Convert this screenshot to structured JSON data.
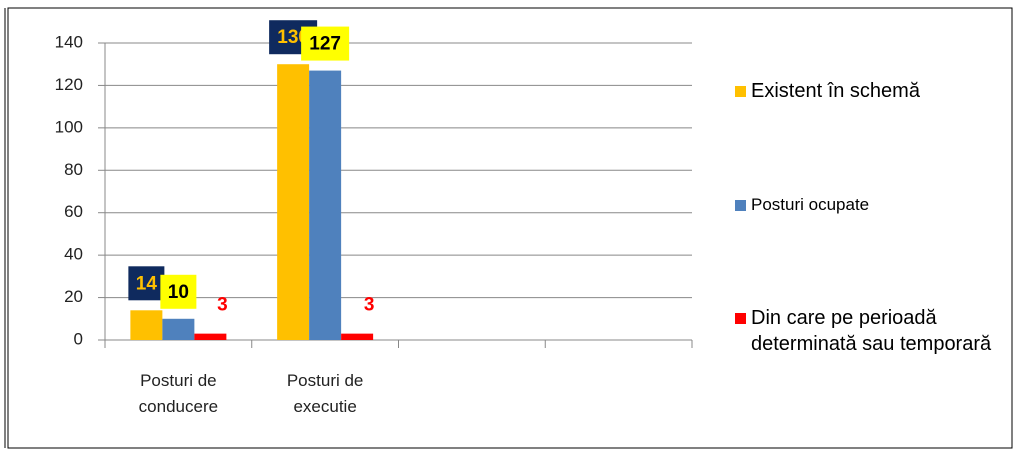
{
  "chart_data": {
    "type": "bar",
    "categories": [
      "Posturi de conducere",
      "Posturi de executie",
      null,
      null
    ],
    "series": [
      {
        "name": "Existent în schemă",
        "color": "#FFC000",
        "values": [
          14,
          130,
          null,
          null
        ]
      },
      {
        "name": "Posturi ocupate",
        "color": "#4F81BD",
        "values": [
          10,
          127,
          null,
          null
        ]
      },
      {
        "name": "Din care pe perioadă determinată sau temporară",
        "color": "#FF0000",
        "values": [
          3,
          3,
          null,
          null
        ]
      }
    ],
    "ylim": [
      0,
      140
    ],
    "yticks": [
      0,
      20,
      40,
      60,
      80,
      100,
      120,
      140
    ],
    "grid": true,
    "legend": "right"
  }
}
